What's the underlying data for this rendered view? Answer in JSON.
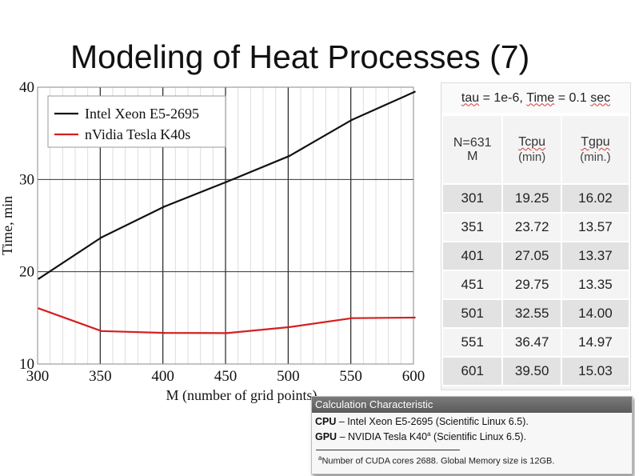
{
  "slide": {
    "title": "Modeling of Heat Processes (7)"
  },
  "chart_data": {
    "type": "line",
    "title": "",
    "xlabel": "M (number of grid points)",
    "ylabel": "Time, min",
    "xlim": [
      300,
      600
    ],
    "ylim": [
      10,
      40
    ],
    "x_ticks": [
      "300",
      "350",
      "400",
      "450",
      "500",
      "550",
      "600"
    ],
    "y_ticks": [
      "10",
      "20",
      "30",
      "40"
    ],
    "grid": true,
    "legend_position": "top-left",
    "series": [
      {
        "name": "Intel Xeon E5-2695",
        "color": "#111111",
        "x": [
          301,
          351,
          401,
          451,
          501,
          551,
          601
        ],
        "y": [
          19.25,
          23.72,
          27.05,
          29.75,
          32.55,
          36.47,
          39.5
        ]
      },
      {
        "name": "nVidia Tesla K40s",
        "color": "#d42020",
        "x": [
          301,
          351,
          401,
          451,
          501,
          551,
          601
        ],
        "y": [
          16.02,
          13.57,
          13.37,
          13.35,
          14.0,
          14.97,
          15.03
        ]
      }
    ]
  },
  "table": {
    "caption_parts": [
      "tau",
      " = 1e-6, ",
      "Time",
      " = 0.1 ",
      "sec"
    ],
    "headers": {
      "n_label": "N=631",
      "m_label": "M",
      "tcpu": "Tcpu",
      "tcpu_unit": "(min)",
      "tgpu": "Tgpu",
      "tgpu_unit": "(min.)"
    },
    "rows": [
      [
        "301",
        "19.25",
        "16.02"
      ],
      [
        "351",
        "23.72",
        "13.57"
      ],
      [
        "401",
        "27.05",
        "13.37"
      ],
      [
        "451",
        "29.75",
        "13.35"
      ],
      [
        "501",
        "32.55",
        "14.00"
      ],
      [
        "551",
        "36.47",
        "14.97"
      ],
      [
        "601",
        "39.50",
        "15.03"
      ]
    ]
  },
  "note": {
    "heading": "Calculation Characteristic",
    "cpu_label": "CPU",
    "cpu_text": " – Intel Xeon E5-2695 (Scientific Linux 6.5).",
    "gpu_label": "GPU",
    "gpu_text": " – NVIDIA Tesla K40",
    "gpu_sup": "a",
    "gpu_text2": " (Scientific Linux 6.5).",
    "footnote_sup": "a",
    "footnote": "Number of CUDA cores 2688. Global Memory size is 12GB."
  }
}
